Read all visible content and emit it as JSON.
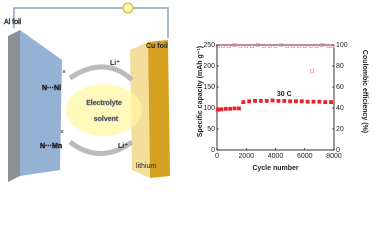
{
  "diagram": {
    "al_foil": "Al foil",
    "cu_foil": "Cu foil",
    "li_top": "Li⁺",
    "li_bottom": "Li⁺",
    "electrolyte": "Electrolyte",
    "solvent": "solvent",
    "ni": "N···Ni",
    "mn": "N···Mn",
    "lithium": "lithium"
  },
  "chart_data": {
    "type": "scatter",
    "annotation": "30 C",
    "xlabel": "Cycle number",
    "ylabel": "Specific capacity (mAh g⁻¹)",
    "y2label": "Coulombic efficiency (%)",
    "xlim": [
      0,
      8000
    ],
    "xticks": [
      0,
      2000,
      4000,
      6000,
      8000
    ],
    "ylim": [
      0,
      250
    ],
    "yticks": [
      0,
      50,
      100,
      150,
      200,
      250
    ],
    "y2lim": [
      0,
      100
    ],
    "y2ticks": [
      0,
      20,
      40,
      60,
      80,
      100
    ],
    "series": [
      {
        "color": "#e8202a",
        "marker": "filled-square",
        "x": [
          50,
          300,
          600,
          900,
          1200,
          1500,
          1800,
          2200,
          2600,
          3000,
          3400,
          3800,
          4200,
          4600,
          5000,
          5400,
          5800,
          6200,
          6600,
          7000,
          7400,
          7800
        ],
        "values": [
          96,
          97,
          98,
          98,
          99,
          99,
          114,
          116,
          117,
          117,
          117,
          118,
          117,
          117,
          116,
          116,
          116,
          115,
          115,
          115,
          114,
          114
        ]
      },
      {
        "color": "#f080a0",
        "marker": "hollow-square",
        "axis": "y2",
        "x": [
          50,
          400,
          800,
          1200,
          1600,
          2000,
          2400,
          2800,
          3200,
          3600,
          4000,
          4400,
          4800,
          5200,
          5600,
          6000,
          6400,
          6500,
          6800,
          7200,
          7600,
          7900
        ],
        "values": [
          99,
          99,
          99,
          100,
          99,
          99,
          99,
          100,
          99,
          99,
          99,
          100,
          99,
          99,
          99,
          99,
          99,
          75,
          99,
          100,
          99,
          99
        ]
      }
    ]
  }
}
